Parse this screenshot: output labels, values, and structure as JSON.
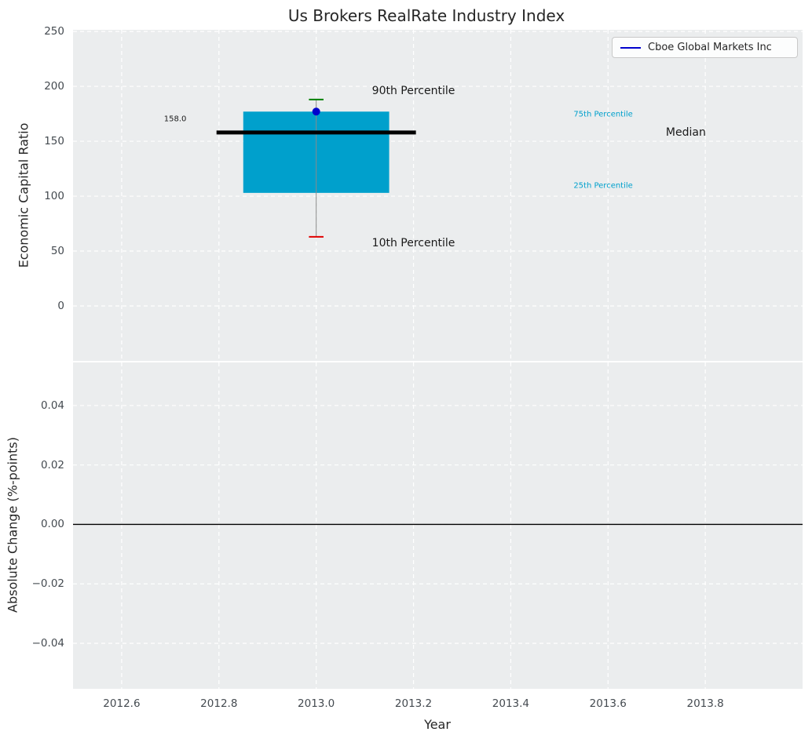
{
  "chart_data": {
    "type": "boxplot",
    "title": "Us Brokers RealRate Industry Index",
    "xlabel": "Year",
    "x_axis": {
      "lim": [
        2012.5,
        2014.0
      ],
      "tick_values": [
        2012.6,
        2012.8,
        2013.0,
        2013.2,
        2013.4,
        2013.6,
        2013.8
      ],
      "tick_labels": [
        "2012.6",
        "2012.8",
        "2013.0",
        "2013.2",
        "2013.4",
        "2013.6",
        "2013.8"
      ]
    },
    "panels": [
      {
        "name": "economic-capital-ratio",
        "ylabel": "Economic Capital Ratio",
        "ylim": [
          -50,
          251.5
        ],
        "tick_values": [
          0,
          50,
          100,
          150,
          200,
          250
        ],
        "tick_labels": [
          "0",
          "50",
          "100",
          "150",
          "200",
          "250"
        ],
        "grid": true
      },
      {
        "name": "absolute-change",
        "ylabel": "Absolute Change (%-points)",
        "ylim": [
          -0.0553,
          0.0545
        ],
        "tick_values": [
          -0.04,
          -0.02,
          0,
          0.02,
          0.04
        ],
        "tick_labels": [
          "−0.04",
          "−0.02",
          "0.00",
          "0.02",
          "0.04"
        ],
        "grid": true
      }
    ],
    "boxes": [
      {
        "x": 2013.0,
        "p10": 63,
        "p25": 103,
        "median": 158.0,
        "p75": 177,
        "p90": 188,
        "median_label": "158.0"
      }
    ],
    "series": [
      {
        "name": "Cboe Global Markets Inc",
        "color": "#0000cd",
        "points": [
          {
            "x": 2013.0,
            "y": 177
          }
        ]
      }
    ],
    "hlines": [
      {
        "panel": 1,
        "y": 0,
        "color": "#000000",
        "width": 1.4
      }
    ],
    "style": {
      "box_color": "#00a0cc",
      "box_width": 0.3,
      "median_color": "#000000",
      "median_width": 0.41,
      "median_thickness": 5,
      "cap_width": 0.03,
      "p90_color": "#008000",
      "p10_color": "#e00000",
      "whisker_color": "#8a8a8a",
      "point_radius": 5
    },
    "annotations": [
      {
        "text": "158.0",
        "x": 2012.71,
        "y": 170,
        "color": "#1a1a1a",
        "size": 10
      },
      {
        "text": "90th Percentile",
        "x": 2013.2,
        "y": 196,
        "color": "#1a1a1a",
        "size": 14
      },
      {
        "text": "10th Percentile",
        "x": 2013.2,
        "y": 57,
        "color": "#1a1a1a",
        "size": 14
      },
      {
        "text": "75th Percentile",
        "x": 2013.59,
        "y": 174,
        "color": "#00a0cc",
        "size": 10
      },
      {
        "text": "25th Percentile",
        "x": 2013.59,
        "y": 109,
        "color": "#00a0cc",
        "size": 10
      },
      {
        "text": "Median",
        "x": 2013.76,
        "y": 158,
        "color": "#1a1a1a",
        "size": 14
      }
    ],
    "legend": {
      "label": "Cboe Global Markets Inc",
      "line_color": "#0000cd",
      "position": "upper right"
    }
  }
}
